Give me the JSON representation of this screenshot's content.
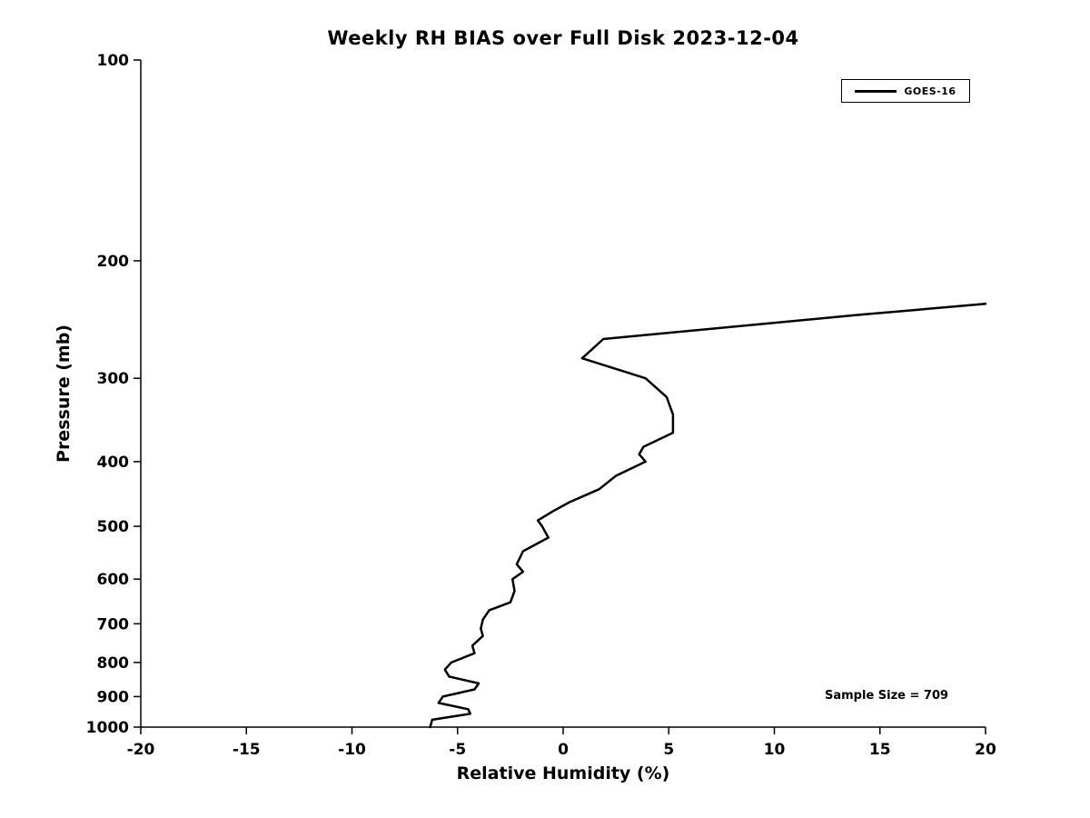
{
  "chart_data": {
    "type": "line",
    "title": "Weekly RH BIAS over Full Disk 2023-12-04",
    "xlabel": "Relative Humidity (%)",
    "ylabel": "Pressure (mb)",
    "xlim": [
      -20,
      20
    ],
    "ylim": [
      100,
      1000
    ],
    "yscale": "log",
    "y_inverted": true,
    "grid": false,
    "xticks": [
      -20,
      -15,
      -10,
      -5,
      0,
      5,
      10,
      15,
      20
    ],
    "yticks": [
      100,
      200,
      300,
      400,
      500,
      600,
      700,
      800,
      900,
      1000
    ],
    "legend": {
      "position": "top-right",
      "entries": [
        {
          "label": "GOES-16",
          "color": "#000000"
        }
      ]
    },
    "annotations": [
      {
        "text": "Sample Size = 709"
      }
    ],
    "series": [
      {
        "name": "GOES-16",
        "color": "#000000",
        "points_format": "[relative_humidity_bias_percent, pressure_mb]",
        "points": [
          [
            20.0,
            232
          ],
          [
            14.0,
            241
          ],
          [
            1.9,
            262
          ],
          [
            0.9,
            280
          ],
          [
            3.9,
            300
          ],
          [
            4.9,
            320
          ],
          [
            5.2,
            340
          ],
          [
            5.2,
            362
          ],
          [
            3.8,
            380
          ],
          [
            3.6,
            390
          ],
          [
            3.9,
            400
          ],
          [
            2.5,
            420
          ],
          [
            1.7,
            440
          ],
          [
            0.3,
            460
          ],
          [
            -0.5,
            475
          ],
          [
            -1.2,
            490
          ],
          [
            -1.0,
            500
          ],
          [
            -0.7,
            520
          ],
          [
            -1.9,
            545
          ],
          [
            -2.2,
            570
          ],
          [
            -1.9,
            585
          ],
          [
            -2.4,
            600
          ],
          [
            -2.3,
            625
          ],
          [
            -2.5,
            650
          ],
          [
            -3.5,
            668
          ],
          [
            -3.8,
            690
          ],
          [
            -3.9,
            712
          ],
          [
            -3.8,
            730
          ],
          [
            -4.3,
            755
          ],
          [
            -4.2,
            775
          ],
          [
            -5.3,
            800
          ],
          [
            -5.6,
            820
          ],
          [
            -5.4,
            840
          ],
          [
            -4.0,
            860
          ],
          [
            -4.2,
            878
          ],
          [
            -5.7,
            900
          ],
          [
            -5.9,
            920
          ],
          [
            -4.5,
            940
          ],
          [
            -4.4,
            955
          ],
          [
            -6.2,
            975
          ],
          [
            -6.3,
            1000
          ]
        ]
      }
    ]
  }
}
